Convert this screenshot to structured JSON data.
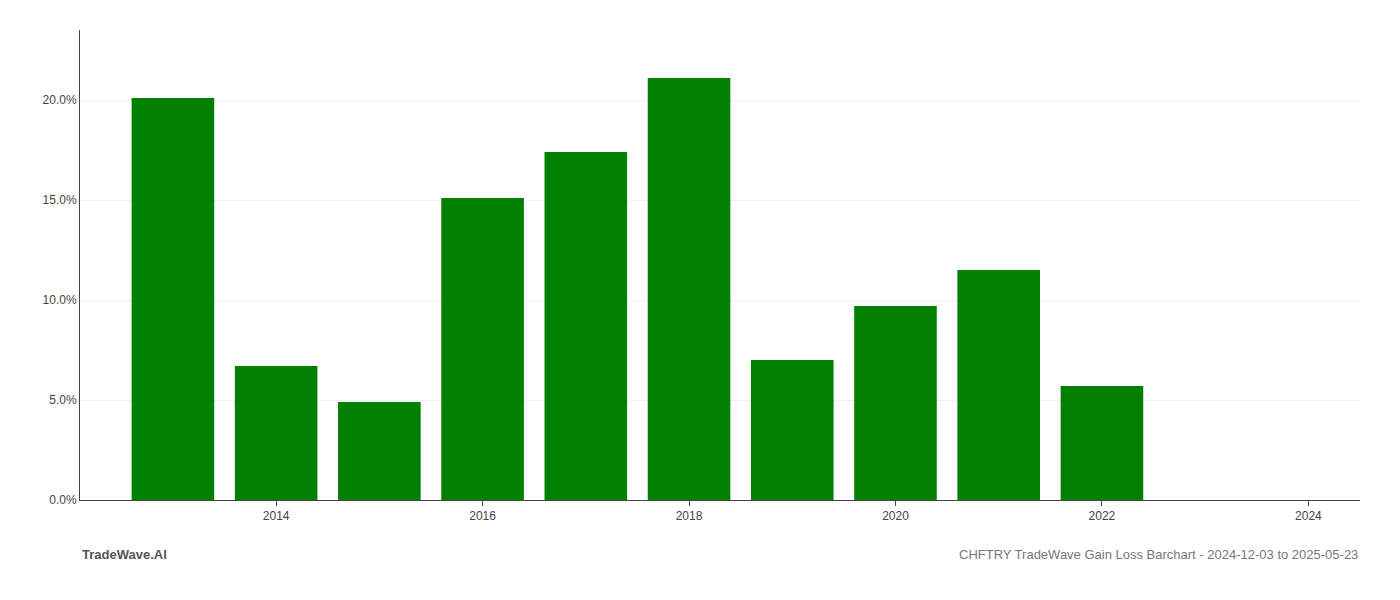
{
  "chart_data": {
    "type": "bar",
    "x": [
      2013,
      2014,
      2015,
      2016,
      2017,
      2018,
      2019,
      2020,
      2021,
      2022,
      2023
    ],
    "values": [
      0.201,
      0.067,
      0.049,
      0.151,
      0.174,
      0.211,
      0.07,
      0.097,
      0.115,
      0.057,
      0.0
    ],
    "color": "#008000",
    "xlim": [
      2012.1,
      2024.5
    ],
    "xticks": [
      2014,
      2016,
      2018,
      2020,
      2022,
      2024
    ],
    "ylim": [
      0.0,
      0.235
    ],
    "yticks": [
      {
        "value": 0.0,
        "label": "0.0%"
      },
      {
        "value": 0.05,
        "label": "5.0%"
      },
      {
        "value": 0.1,
        "label": "10.0%"
      },
      {
        "value": 0.15,
        "label": "15.0%"
      },
      {
        "value": 0.2,
        "label": "20.0%"
      }
    ],
    "grid": true,
    "annotations": [
      "TradeWave.AI",
      "CHFTRY TradeWave Gain Loss Barchart - 2024-12-03 to 2025-05-23"
    ]
  }
}
